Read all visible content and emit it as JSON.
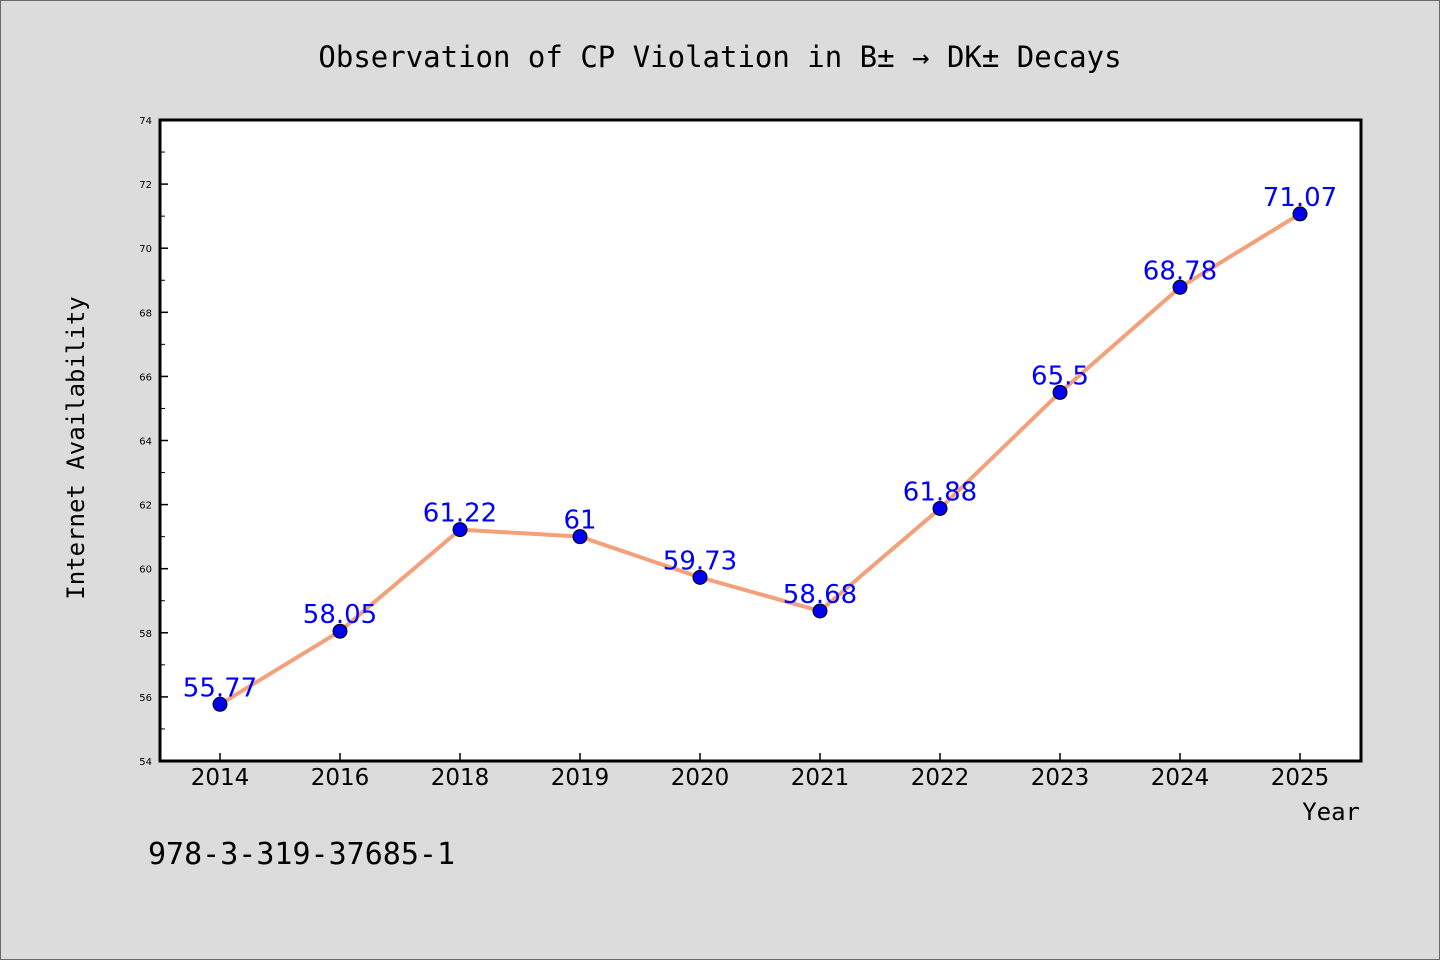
{
  "footnote": "978-3-319-37685-1",
  "chart_data": {
    "type": "line",
    "title": "Observation of CP Violation in B± → DK± Decays",
    "xlabel": "Year",
    "ylabel": "Internet Availability",
    "categories": [
      "2014",
      "2016",
      "2018",
      "2019",
      "2020",
      "2021",
      "2022",
      "2023",
      "2024",
      "2025"
    ],
    "series": [
      {
        "values": [
          55.77,
          58.05,
          61.22,
          61,
          59.73,
          58.68,
          61.88,
          65.5,
          68.78,
          71.07
        ],
        "labels": [
          "55.77",
          "58.05",
          "61.22",
          "61",
          "59.73",
          "58.68",
          "61.88",
          "65.5",
          "68.78",
          "71.07"
        ]
      }
    ],
    "ylim": [
      54,
      74
    ],
    "yticks": [
      "54",
      "56",
      "58",
      "60",
      "62",
      "64",
      "66",
      "68",
      "70",
      "72",
      "74"
    ],
    "grid": false,
    "legend": "none",
    "colors": {
      "line": "#f4a07a",
      "marker": "#0000ee",
      "data_label": "#0000ff",
      "background": "#dcdcdc",
      "plot_area": "#ffffff"
    }
  }
}
